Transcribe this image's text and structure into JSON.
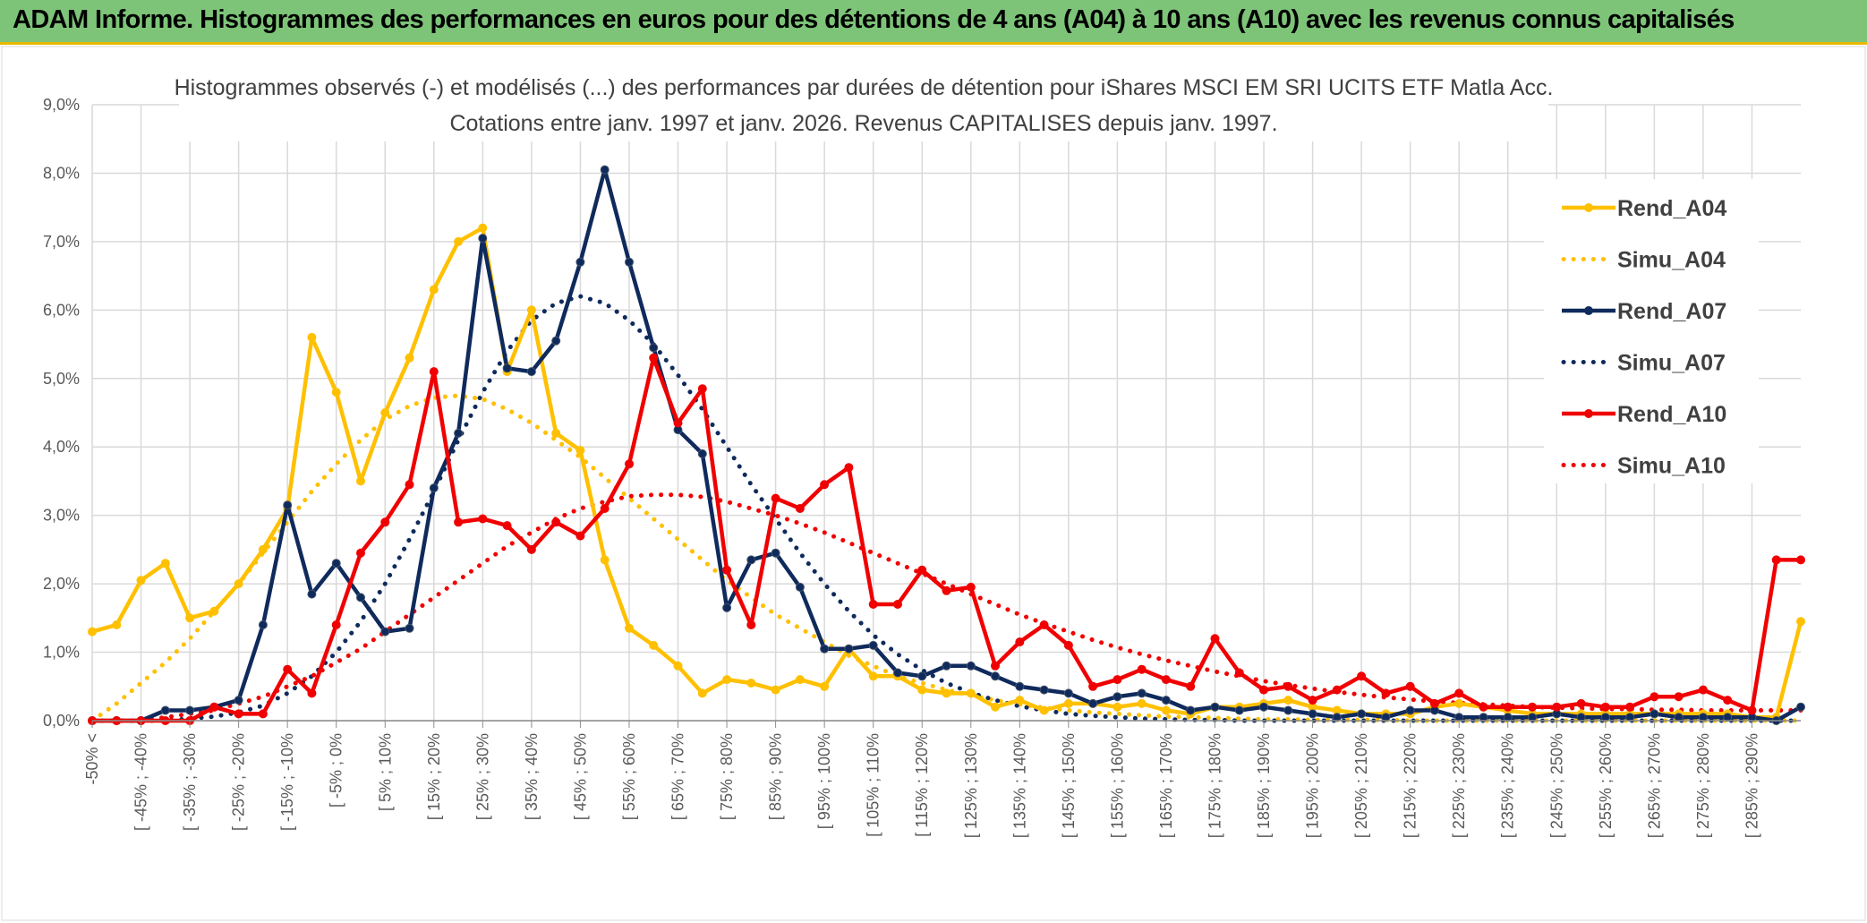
{
  "banner": {
    "title": "ADAM Informe. Histogrammes des performances en euros pour des détentions de 4 ans (A04) à 10 ans (A10) avec les revenus connus capitalisés"
  },
  "colors": {
    "banner_bg": "#7dc478",
    "banner_border": "#e8b800",
    "grid": "#d9d9d9"
  },
  "chart_data": {
    "type": "line",
    "title_line1": "Histogrammes observés (-) et modélisés (...) des performances par durées de détention pour iShares MSCI EM SRI UCITS ETF Matla Acc.",
    "title_line2": "Cotations entre janv. 1997 et janv. 2026. Revenus CAPITALISES depuis janv. 1997.",
    "xlabel": "",
    "ylabel": "",
    "ylim": [
      0,
      9
    ],
    "y_ticks": [
      "0,0%",
      "1,0%",
      "2,0%",
      "3,0%",
      "4,0%",
      "5,0%",
      "6,0%",
      "7,0%",
      "8,0%",
      "9,0%"
    ],
    "grid": true,
    "legend_position": "right",
    "x_labels": [
      "-50% <",
      "[ -45% ; -40%",
      "[ -35% ; -30%",
      "[ -25% ; -20%",
      "[ -15% ; -10%",
      "[ -5% ; 0%",
      "[ 5% ; 10%",
      "[ 15% ; 20%",
      "[ 25% ; 30%",
      "[ 35% ; 40%",
      "[ 45% ; 50%",
      "[ 55% ; 60%",
      "[ 65% ; 70%",
      "[ 75% ; 80%",
      "[ 85% ; 90%",
      "[ 95% ; 100%",
      "[ 105% ; 110%",
      "[ 115% ; 120%",
      "[ 125% ; 130%",
      "[ 135% ; 140%",
      "[ 145% ; 150%",
      "[ 155% ; 160%",
      "[ 165% ; 170%",
      "[ 175% ; 180%",
      "[ 185% ; 190%",
      "[ 195% ; 200%",
      "[ 205% ; 210%",
      "[ 215% ; 220%",
      "[ 225% ; 230%",
      "[ 235% ; 240%",
      "[ 245% ; 250%",
      "[ 255% ; 260%",
      "[ 265% ; 270%",
      "[ 275% ; 280%",
      "[ 285% ; 290%"
    ],
    "series": [
      {
        "name": "Rend_A04",
        "color": "#FFC000",
        "style": "solid",
        "markers": true,
        "values": [
          1.3,
          1.4,
          2.05,
          2.3,
          1.5,
          1.6,
          2.0,
          2.5,
          3.1,
          5.6,
          4.8,
          3.5,
          4.5,
          5.3,
          6.3,
          7.0,
          7.2,
          5.1,
          6.0,
          4.2,
          3.95,
          2.35,
          1.35,
          1.1,
          0.8,
          0.4,
          0.6,
          0.55,
          0.45,
          0.6,
          0.5,
          1.05,
          0.65,
          0.65,
          0.45,
          0.4,
          0.4,
          0.2,
          0.3,
          0.15,
          0.25,
          0.25,
          0.2,
          0.25,
          0.15,
          0.1,
          0.2,
          0.2,
          0.25,
          0.3,
          0.2,
          0.15,
          0.1,
          0.1,
          0.1,
          0.2,
          0.25,
          0.2,
          0.15,
          0.1,
          0.1,
          0.1,
          0.1,
          0.1,
          0.1,
          0.1,
          0.1,
          0.1,
          0.05,
          0.05,
          1.45
        ]
      },
      {
        "name": "Simu_A04",
        "color": "#FFC000",
        "style": "dotted",
        "markers": false,
        "values": [
          0.0,
          0.25,
          0.55,
          0.85,
          1.2,
          1.6,
          2.0,
          2.45,
          2.9,
          3.35,
          3.75,
          4.1,
          4.4,
          4.6,
          4.72,
          4.75,
          4.7,
          4.55,
          4.35,
          4.1,
          3.85,
          3.55,
          3.25,
          2.95,
          2.65,
          2.35,
          2.05,
          1.8,
          1.55,
          1.35,
          1.15,
          0.95,
          0.8,
          0.65,
          0.55,
          0.45,
          0.37,
          0.3,
          0.24,
          0.19,
          0.15,
          0.12,
          0.1,
          0.08,
          0.06,
          0.05,
          0.04,
          0.03,
          0.02,
          0.02,
          0.01,
          0.01,
          0.01,
          0.01,
          0.0,
          0.0,
          0.0,
          0.0,
          0.0,
          0.0,
          0.0,
          0.0,
          0.0,
          0.0,
          0.0,
          0.0,
          0.0,
          0.0,
          0.0,
          0.0,
          0.0
        ]
      },
      {
        "name": "Rend_A07",
        "color": "#0F2A5C",
        "style": "solid",
        "markers": true,
        "values": [
          0.0,
          0.0,
          0.0,
          0.15,
          0.15,
          0.2,
          0.3,
          1.4,
          3.15,
          1.85,
          2.3,
          1.8,
          1.3,
          1.35,
          3.4,
          4.2,
          7.05,
          5.15,
          5.1,
          5.55,
          6.7,
          8.05,
          6.7,
          5.45,
          4.25,
          3.9,
          1.65,
          2.35,
          2.45,
          1.95,
          1.05,
          1.05,
          1.1,
          0.7,
          0.65,
          0.8,
          0.8,
          0.65,
          0.5,
          0.45,
          0.4,
          0.25,
          0.35,
          0.4,
          0.3,
          0.15,
          0.2,
          0.15,
          0.2,
          0.15,
          0.1,
          0.05,
          0.1,
          0.05,
          0.15,
          0.15,
          0.05,
          0.05,
          0.05,
          0.05,
          0.1,
          0.05,
          0.05,
          0.05,
          0.1,
          0.05,
          0.05,
          0.05,
          0.05,
          0.0,
          0.2
        ]
      },
      {
        "name": "Simu_A07",
        "color": "#0F2A5C",
        "style": "dotted",
        "markers": false,
        "values": [
          0.0,
          0.0,
          0.0,
          0.0,
          0.03,
          0.06,
          0.12,
          0.22,
          0.4,
          0.65,
          1.0,
          1.45,
          2.0,
          2.65,
          3.35,
          4.1,
          4.8,
          5.4,
          5.85,
          6.1,
          6.2,
          6.1,
          5.85,
          5.5,
          5.05,
          4.55,
          4.0,
          3.45,
          2.95,
          2.45,
          2.0,
          1.6,
          1.25,
          0.97,
          0.74,
          0.55,
          0.41,
          0.3,
          0.21,
          0.15,
          0.1,
          0.07,
          0.05,
          0.03,
          0.02,
          0.01,
          0.01,
          0.0,
          0.0,
          0.0,
          0.0,
          0.0,
          0.0,
          0.0,
          0.0,
          0.0,
          0.0,
          0.0,
          0.0,
          0.0,
          0.0,
          0.0,
          0.0,
          0.0,
          0.0,
          0.0,
          0.0,
          0.0,
          0.0,
          0.0,
          0.0
        ]
      },
      {
        "name": "Rend_A10",
        "color": "#F00000",
        "style": "solid",
        "markers": true,
        "values": [
          0.0,
          0.0,
          0.0,
          0.0,
          0.0,
          0.2,
          0.1,
          0.1,
          0.75,
          0.4,
          1.4,
          2.45,
          2.9,
          3.45,
          5.1,
          2.9,
          2.95,
          2.85,
          2.5,
          2.9,
          2.7,
          3.1,
          3.75,
          5.3,
          4.35,
          4.85,
          2.2,
          1.4,
          3.25,
          3.1,
          3.45,
          3.7,
          1.7,
          1.7,
          2.2,
          1.9,
          1.95,
          0.8,
          1.15,
          1.4,
          1.1,
          0.5,
          0.6,
          0.75,
          0.6,
          0.5,
          1.2,
          0.7,
          0.45,
          0.5,
          0.3,
          0.45,
          0.65,
          0.4,
          0.5,
          0.25,
          0.4,
          0.2,
          0.2,
          0.2,
          0.2,
          0.25,
          0.2,
          0.2,
          0.35,
          0.35,
          0.45,
          0.3,
          0.15,
          2.35,
          2.35
        ]
      },
      {
        "name": "Simu_A10",
        "color": "#F00000",
        "style": "dotted",
        "markers": false,
        "values": [
          0.0,
          0.0,
          0.0,
          0.05,
          0.1,
          0.15,
          0.25,
          0.35,
          0.5,
          0.65,
          0.85,
          1.05,
          1.3,
          1.55,
          1.8,
          2.05,
          2.3,
          2.55,
          2.75,
          2.95,
          3.1,
          3.2,
          3.28,
          3.3,
          3.3,
          3.27,
          3.2,
          3.1,
          3.0,
          2.88,
          2.75,
          2.6,
          2.45,
          2.3,
          2.15,
          2.0,
          1.85,
          1.7,
          1.55,
          1.42,
          1.3,
          1.18,
          1.07,
          0.97,
          0.88,
          0.8,
          0.72,
          0.65,
          0.58,
          0.52,
          0.47,
          0.42,
          0.38,
          0.34,
          0.31,
          0.28,
          0.26,
          0.24,
          0.22,
          0.2,
          0.19,
          0.18,
          0.17,
          0.17,
          0.16,
          0.16,
          0.15,
          0.15,
          0.15,
          0.15,
          0.15
        ]
      }
    ]
  }
}
